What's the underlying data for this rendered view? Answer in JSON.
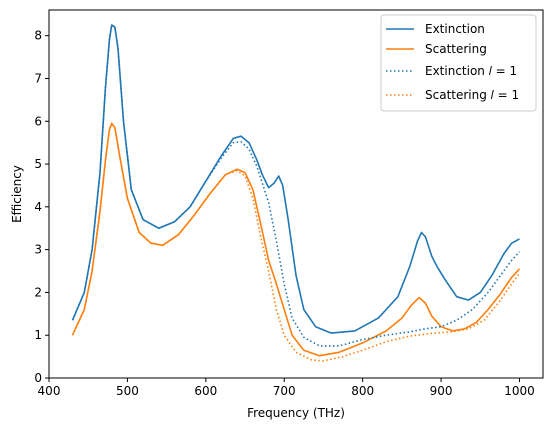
{
  "chart_data": {
    "type": "line",
    "title": "",
    "xlabel": "Frequency (THz)",
    "ylabel": "Efficiency",
    "xlim": [
      400,
      1030
    ],
    "ylim": [
      0,
      8.6
    ],
    "xticks": [
      400,
      500,
      600,
      700,
      800,
      900,
      1000
    ],
    "yticks": [
      0,
      1,
      2,
      3,
      4,
      5,
      6,
      7,
      8
    ],
    "grid": false,
    "legend_position": "top-right",
    "series": [
      {
        "name": "Extinction",
        "color": "#1f77b4",
        "dash": "solid",
        "points": [
          [
            430,
            1.35
          ],
          [
            445,
            2.0
          ],
          [
            455,
            3.0
          ],
          [
            465,
            4.8
          ],
          [
            472,
            6.8
          ],
          [
            477,
            7.9
          ],
          [
            480,
            8.25
          ],
          [
            484,
            8.2
          ],
          [
            488,
            7.7
          ],
          [
            495,
            6.0
          ],
          [
            505,
            4.4
          ],
          [
            520,
            3.7
          ],
          [
            540,
            3.5
          ],
          [
            560,
            3.65
          ],
          [
            580,
            4.0
          ],
          [
            600,
            4.6
          ],
          [
            620,
            5.2
          ],
          [
            635,
            5.6
          ],
          [
            645,
            5.65
          ],
          [
            655,
            5.5
          ],
          [
            665,
            5.1
          ],
          [
            672,
            4.75
          ],
          [
            680,
            4.45
          ],
          [
            687,
            4.55
          ],
          [
            693,
            4.72
          ],
          [
            698,
            4.5
          ],
          [
            705,
            3.7
          ],
          [
            715,
            2.4
          ],
          [
            725,
            1.6
          ],
          [
            740,
            1.2
          ],
          [
            760,
            1.05
          ],
          [
            790,
            1.1
          ],
          [
            820,
            1.4
          ],
          [
            845,
            1.9
          ],
          [
            860,
            2.6
          ],
          [
            870,
            3.2
          ],
          [
            875,
            3.4
          ],
          [
            880,
            3.3
          ],
          [
            888,
            2.85
          ],
          [
            895,
            2.6
          ],
          [
            905,
            2.3
          ],
          [
            920,
            1.9
          ],
          [
            935,
            1.82
          ],
          [
            950,
            2.0
          ],
          [
            965,
            2.4
          ],
          [
            980,
            2.9
          ],
          [
            990,
            3.15
          ],
          [
            1000,
            3.25
          ]
        ]
      },
      {
        "name": "Scattering",
        "color": "#ff7f0e",
        "dash": "solid",
        "points": [
          [
            430,
            1.0
          ],
          [
            445,
            1.6
          ],
          [
            455,
            2.5
          ],
          [
            465,
            3.9
          ],
          [
            472,
            5.1
          ],
          [
            477,
            5.8
          ],
          [
            480,
            5.95
          ],
          [
            484,
            5.85
          ],
          [
            490,
            5.2
          ],
          [
            500,
            4.2
          ],
          [
            515,
            3.4
          ],
          [
            530,
            3.15
          ],
          [
            545,
            3.1
          ],
          [
            565,
            3.35
          ],
          [
            585,
            3.8
          ],
          [
            605,
            4.3
          ],
          [
            625,
            4.75
          ],
          [
            640,
            4.88
          ],
          [
            650,
            4.8
          ],
          [
            660,
            4.4
          ],
          [
            670,
            3.6
          ],
          [
            680,
            2.75
          ],
          [
            690,
            2.2
          ],
          [
            700,
            1.6
          ],
          [
            710,
            1.0
          ],
          [
            725,
            0.65
          ],
          [
            745,
            0.52
          ],
          [
            770,
            0.6
          ],
          [
            800,
            0.82
          ],
          [
            830,
            1.1
          ],
          [
            850,
            1.4
          ],
          [
            862,
            1.7
          ],
          [
            872,
            1.88
          ],
          [
            880,
            1.75
          ],
          [
            888,
            1.45
          ],
          [
            900,
            1.2
          ],
          [
            915,
            1.1
          ],
          [
            930,
            1.15
          ],
          [
            945,
            1.3
          ],
          [
            960,
            1.6
          ],
          [
            975,
            1.95
          ],
          [
            990,
            2.35
          ],
          [
            1000,
            2.55
          ]
        ]
      },
      {
        "name": "Extinction l=1",
        "color": "#1f77b4",
        "dash": "dotted",
        "points": [
          [
            430,
            1.35
          ],
          [
            445,
            2.0
          ],
          [
            455,
            3.0
          ],
          [
            465,
            4.8
          ],
          [
            472,
            6.8
          ],
          [
            477,
            7.9
          ],
          [
            480,
            8.25
          ],
          [
            484,
            8.2
          ],
          [
            488,
            7.7
          ],
          [
            495,
            6.0
          ],
          [
            505,
            4.4
          ],
          [
            520,
            3.7
          ],
          [
            540,
            3.5
          ],
          [
            560,
            3.65
          ],
          [
            580,
            4.0
          ],
          [
            600,
            4.6
          ],
          [
            620,
            5.15
          ],
          [
            635,
            5.5
          ],
          [
            645,
            5.52
          ],
          [
            655,
            5.35
          ],
          [
            665,
            4.95
          ],
          [
            680,
            4.1
          ],
          [
            690,
            3.2
          ],
          [
            700,
            2.2
          ],
          [
            710,
            1.4
          ],
          [
            725,
            0.95
          ],
          [
            745,
            0.75
          ],
          [
            770,
            0.75
          ],
          [
            800,
            0.9
          ],
          [
            830,
            1.0
          ],
          [
            860,
            1.08
          ],
          [
            880,
            1.15
          ],
          [
            900,
            1.2
          ],
          [
            920,
            1.35
          ],
          [
            940,
            1.6
          ],
          [
            960,
            2.0
          ],
          [
            980,
            2.5
          ],
          [
            990,
            2.75
          ],
          [
            1000,
            2.95
          ]
        ]
      },
      {
        "name": "Scattering l=1",
        "color": "#ff7f0e",
        "dash": "dotted",
        "points": [
          [
            430,
            1.0
          ],
          [
            445,
            1.6
          ],
          [
            455,
            2.5
          ],
          [
            465,
            3.9
          ],
          [
            472,
            5.1
          ],
          [
            477,
            5.8
          ],
          [
            480,
            5.95
          ],
          [
            484,
            5.85
          ],
          [
            490,
            5.2
          ],
          [
            500,
            4.2
          ],
          [
            515,
            3.4
          ],
          [
            530,
            3.15
          ],
          [
            545,
            3.1
          ],
          [
            565,
            3.35
          ],
          [
            585,
            3.8
          ],
          [
            605,
            4.3
          ],
          [
            625,
            4.75
          ],
          [
            640,
            4.85
          ],
          [
            650,
            4.72
          ],
          [
            660,
            4.2
          ],
          [
            670,
            3.3
          ],
          [
            680,
            2.5
          ],
          [
            690,
            1.6
          ],
          [
            700,
            1.0
          ],
          [
            715,
            0.6
          ],
          [
            735,
            0.42
          ],
          [
            750,
            0.4
          ],
          [
            775,
            0.5
          ],
          [
            800,
            0.65
          ],
          [
            830,
            0.85
          ],
          [
            860,
            0.98
          ],
          [
            890,
            1.05
          ],
          [
            915,
            1.08
          ],
          [
            935,
            1.15
          ],
          [
            955,
            1.35
          ],
          [
            975,
            1.8
          ],
          [
            990,
            2.2
          ],
          [
            1000,
            2.45
          ]
        ]
      }
    ],
    "legend": [
      {
        "label": "Extinction"
      },
      {
        "label": "Scattering"
      },
      {
        "label": "Extinction 𝑙 = 1"
      },
      {
        "label": "Scattering 𝑙 = 1"
      }
    ]
  }
}
